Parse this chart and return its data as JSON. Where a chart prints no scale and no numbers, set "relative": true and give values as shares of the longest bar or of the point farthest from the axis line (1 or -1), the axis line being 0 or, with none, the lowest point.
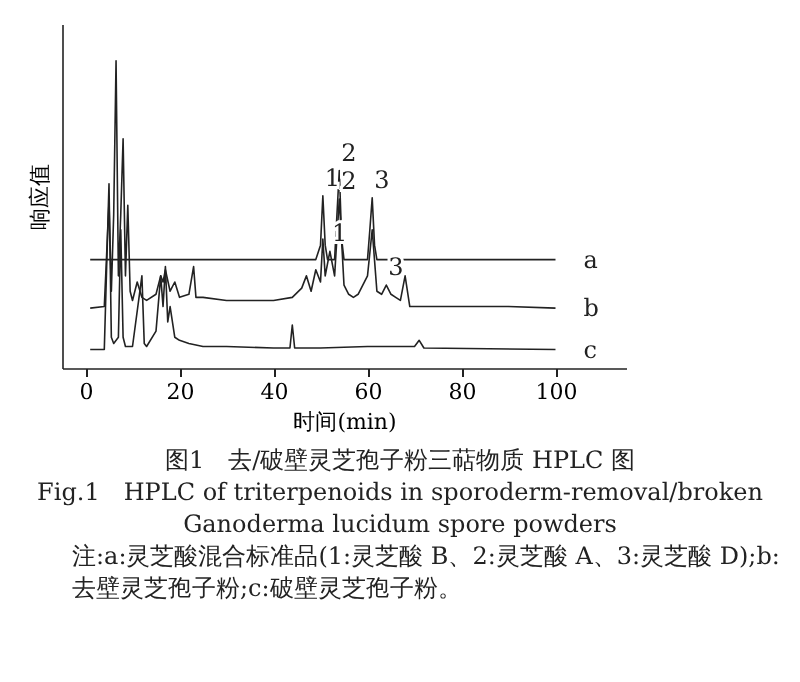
{
  "chart_data": {
    "type": "line",
    "relative": true,
    "title": "图1　去/破壁灵芝孢子粉三萜物质 HPLC 图",
    "subtitle": "Fig.1　HPLC of triterpenoids in sporoderm-removal/broken Ganoderma lucidum spore powders",
    "xlabel": "时间(min)",
    "ylabel": "响应值",
    "xlim": [
      -5,
      115
    ],
    "xticks": [
      0,
      20,
      40,
      60,
      80,
      100
    ],
    "grid": false,
    "legend": false,
    "series": [
      {
        "name": "a",
        "color": "#222222",
        "x": [
          1,
          49,
          50,
          50.5,
          51,
          51.5,
          53,
          53.5,
          54,
          54.5,
          55,
          60,
          60.5,
          61,
          61.5,
          62,
          100
        ],
        "values": [
          0.353,
          0.353,
          0.4,
          0.561,
          0.4,
          0.353,
          0.353,
          0.5,
          0.643,
          0.42,
          0.353,
          0.353,
          0.45,
          0.554,
          0.4,
          0.353,
          0.353
        ]
      },
      {
        "name": "b",
        "color": "#222222",
        "x": [
          1,
          4,
          5,
          5.5,
          6,
          6.5,
          7,
          7.5,
          8,
          8.5,
          9,
          9.5,
          10,
          11,
          12,
          13,
          15,
          16,
          16.5,
          17,
          18,
          19,
          20,
          22,
          23,
          23.5,
          25,
          30,
          35,
          40,
          44,
          46,
          47,
          48,
          49,
          50,
          50.5,
          51,
          52,
          53,
          54,
          55,
          56,
          57,
          58,
          59,
          60,
          61,
          62,
          63,
          64,
          65,
          66,
          67,
          68,
          69,
          70,
          75,
          80,
          85,
          90,
          100
        ],
        "values": [
          0.195,
          0.2,
          0.54,
          0.25,
          0.5,
          1.0,
          0.3,
          0.5,
          0.746,
          0.3,
          0.53,
          0.25,
          0.22,
          0.28,
          0.23,
          0.22,
          0.24,
          0.3,
          0.28,
          0.32,
          0.25,
          0.28,
          0.23,
          0.24,
          0.33,
          0.23,
          0.23,
          0.22,
          0.22,
          0.22,
          0.23,
          0.26,
          0.3,
          0.25,
          0.32,
          0.28,
          0.42,
          0.3,
          0.38,
          0.3,
          0.55,
          0.27,
          0.24,
          0.23,
          0.24,
          0.27,
          0.3,
          0.45,
          0.25,
          0.24,
          0.27,
          0.24,
          0.23,
          0.22,
          0.3,
          0.2,
          0.2,
          0.2,
          0.2,
          0.2,
          0.2,
          0.195
        ]
      },
      {
        "name": "c",
        "color": "#222222",
        "x": [
          1,
          4,
          5,
          5.5,
          6,
          7,
          7.5,
          8,
          8.5,
          10,
          12,
          12.5,
          13,
          15,
          16,
          16.5,
          17,
          17.5,
          18,
          19,
          20,
          22,
          25,
          30,
          40,
          43.5,
          44,
          44.5,
          50,
          60,
          70,
          71,
          72,
          100
        ],
        "values": [
          0.06,
          0.06,
          0.6,
          0.1,
          0.08,
          0.1,
          0.45,
          0.1,
          0.07,
          0.07,
          0.3,
          0.08,
          0.07,
          0.12,
          0.3,
          0.2,
          0.33,
          0.15,
          0.2,
          0.1,
          0.09,
          0.08,
          0.07,
          0.07,
          0.065,
          0.065,
          0.14,
          0.065,
          0.065,
          0.07,
          0.07,
          0.09,
          0.065,
          0.06
        ]
      }
    ],
    "annotations": [
      {
        "text": "1",
        "x": 50.5,
        "y": 0.561
      },
      {
        "text": "2",
        "x": 54,
        "y": 0.643
      },
      {
        "text": "3",
        "x": 61,
        "y": 0.554
      },
      {
        "text": "1",
        "x": 52,
        "y": 0.38
      },
      {
        "text": "2",
        "x": 54,
        "y": 0.55
      },
      {
        "text": "3",
        "x": 64,
        "y": 0.27
      },
      "注:a:灵芝酸混合标准品(1:灵芝酸 B、2:灵芝酸 A、3:灵芝酸 D);b:去壁灵芝孢子粉;c:破壁灵芝孢子粉。"
    ]
  }
}
